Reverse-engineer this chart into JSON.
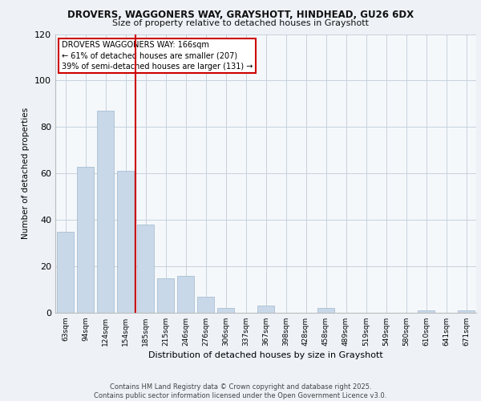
{
  "title_line1": "DROVERS, WAGGONERS WAY, GRAYSHOTT, HINDHEAD, GU26 6DX",
  "title_line2": "Size of property relative to detached houses in Grayshott",
  "xlabel": "Distribution of detached houses by size in Grayshott",
  "ylabel": "Number of detached properties",
  "categories": [
    "63sqm",
    "94sqm",
    "124sqm",
    "154sqm",
    "185sqm",
    "215sqm",
    "246sqm",
    "276sqm",
    "306sqm",
    "337sqm",
    "367sqm",
    "398sqm",
    "428sqm",
    "458sqm",
    "489sqm",
    "519sqm",
    "549sqm",
    "580sqm",
    "610sqm",
    "641sqm",
    "671sqm"
  ],
  "values": [
    35,
    63,
    87,
    61,
    38,
    15,
    16,
    7,
    2,
    0,
    3,
    0,
    0,
    2,
    0,
    0,
    0,
    0,
    1,
    0,
    1
  ],
  "bar_color": "#c8d8e8",
  "bar_edge_color": "#a0b8cc",
  "vline_x": 3.5,
  "vline_color": "#cc0000",
  "annotation_title": "DROVERS WAGGONERS WAY: 166sqm",
  "annotation_line1": "← 61% of detached houses are smaller (207)",
  "annotation_line2": "39% of semi-detached houses are larger (131) →",
  "annotation_box_color": "#cc0000",
  "ylim": [
    0,
    120
  ],
  "yticks": [
    0,
    20,
    40,
    60,
    80,
    100,
    120
  ],
  "footer_line1": "Contains HM Land Registry data © Crown copyright and database right 2025.",
  "footer_line2": "Contains public sector information licensed under the Open Government Licence v3.0.",
  "bg_color": "#eef2f7",
  "plot_bg_color": "#f5f8fb"
}
